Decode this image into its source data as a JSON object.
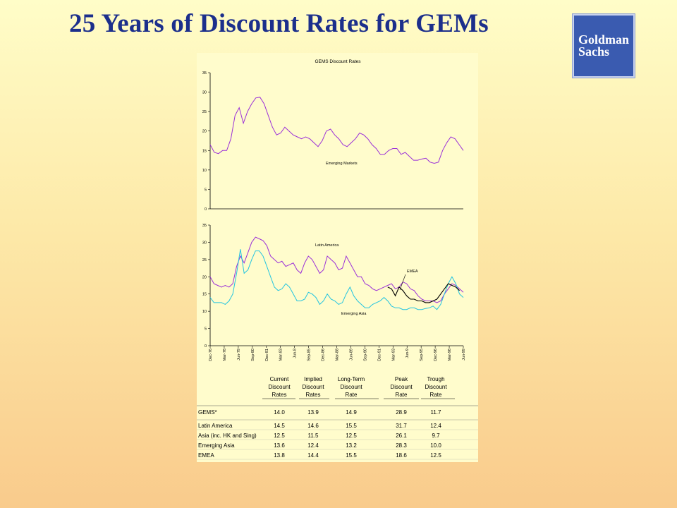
{
  "slide": {
    "title": "25 Years of Discount Rates for GEMs",
    "logo_line1": "Goldman",
    "logo_line2": "Sachs"
  },
  "colors": {
    "title": "#1c2f8c",
    "logo_bg": "#3a5bb0",
    "emerging_markets": "#9b30d8",
    "latin_america": "#9b30d8",
    "emerging_asia": "#22c4e0",
    "emea": "#000000"
  },
  "chart_data": [
    {
      "type": "line",
      "title": "GEMS Discount Rates",
      "ylim": [
        0,
        35
      ],
      "yticks": [
        0,
        5,
        10,
        15,
        20,
        25,
        30,
        35
      ],
      "series": [
        {
          "name": "Emerging Markets",
          "values": [
            16.5,
            14.5,
            14.2,
            15,
            15,
            18,
            24,
            26,
            22,
            25,
            27,
            28.5,
            28.7,
            27,
            24,
            21,
            19,
            19.5,
            21,
            20,
            19,
            18.5,
            18,
            18.5,
            18,
            17,
            16,
            17.5,
            20,
            20.5,
            19,
            18,
            16.5,
            16,
            17,
            18,
            19.5,
            19,
            18,
            16.5,
            15.5,
            14,
            14,
            15,
            15.5,
            15.5,
            14,
            14.5,
            13.5,
            12.5,
            12.5,
            12.8,
            13,
            12,
            11.7,
            12,
            15,
            17,
            18.5,
            18,
            16.5,
            15
          ]
        }
      ]
    },
    {
      "type": "line",
      "title": "",
      "ylim": [
        0,
        35
      ],
      "yticks": [
        0,
        5,
        10,
        15,
        20,
        25,
        30,
        35
      ],
      "xticks": [
        "Dec-76",
        "Mar-78",
        "Jun-79",
        "Sep-80",
        "Dec-81",
        "Mar-83",
        "Jun-8",
        "Sep-85",
        "Dec-86",
        "Mar-88",
        "Jun-89",
        "Sep-90",
        "Dec-91",
        "Mar-93",
        "Jun-9",
        "Sep-95",
        "Dec-96",
        "Mar-98",
        "Jun-99"
      ],
      "series": [
        {
          "name": "Latin America",
          "values": [
            20,
            18,
            17.5,
            17,
            17.5,
            17,
            18,
            23,
            26,
            24,
            27,
            30,
            31.5,
            31,
            30.5,
            29,
            26,
            25,
            24,
            24.5,
            23,
            23.5,
            24,
            22,
            21,
            24,
            26,
            25,
            23,
            21,
            22,
            26,
            25,
            24,
            22,
            22.5,
            26,
            24,
            22,
            20,
            20,
            18,
            17.5,
            16.5,
            16,
            16.5,
            17,
            17.5,
            18,
            16.5,
            17,
            18.5,
            18,
            16.5,
            16,
            14.5,
            13.5,
            13,
            13,
            13,
            12.5,
            13,
            15,
            16.5,
            18,
            17.5,
            16.5,
            15.5
          ]
        },
        {
          "name": "Emerging Asia",
          "values": [
            14,
            12.5,
            12.5,
            12.5,
            12,
            13,
            15,
            21,
            28,
            21,
            22,
            25,
            27.5,
            27.5,
            26,
            23,
            20,
            17,
            16,
            16.5,
            18,
            17,
            15,
            13,
            13,
            13.5,
            15.5,
            15,
            14,
            12,
            13,
            15,
            13.5,
            13,
            12,
            12.5,
            15,
            17,
            14.5,
            13,
            12,
            11,
            11,
            12,
            12.5,
            13,
            14,
            13,
            11.5,
            11,
            11,
            10.5,
            10.5,
            11,
            11,
            10.5,
            10.5,
            10.8,
            11,
            11.5,
            10.5,
            12,
            15,
            18,
            20,
            18,
            15,
            14
          ]
        },
        {
          "name": "EMEA",
          "start_index": 47,
          "values": [
            17,
            16.5,
            14.5,
            17,
            16,
            14.5,
            13.5,
            13.5,
            13,
            13,
            12.5,
            12.5,
            13,
            13.5,
            15,
            16.5,
            18,
            17.5,
            17,
            16
          ]
        }
      ]
    }
  ],
  "table": {
    "headers": [
      [
        "Current",
        "Discount",
        "Rates"
      ],
      [
        "Implied",
        "Discount",
        "Rates"
      ],
      [
        "Long-Term",
        "Discount",
        "Rate"
      ],
      [
        "Peak",
        "Discount",
        "Rate"
      ],
      [
        "Trough",
        "Discount",
        "Rate"
      ]
    ],
    "rows": [
      {
        "label": "GEMS*",
        "values": [
          "14.0",
          "13.9",
          "14.9",
          "28.9",
          "11.7"
        ]
      },
      {
        "label": "Latin America",
        "values": [
          "14.5",
          "14.6",
          "15.5",
          "31.7",
          "12.4"
        ]
      },
      {
        "label": "Asia (inc. HK and Sing)",
        "values": [
          "12.5",
          "11.5",
          "12.5",
          "26.1",
          "9.7"
        ]
      },
      {
        "label": "Emerging Asia",
        "values": [
          "13.6",
          "12.4",
          "13.2",
          "28.3",
          "10.0"
        ]
      },
      {
        "label": "EMEA",
        "values": [
          "13.8",
          "14.4",
          "15.5",
          "18.6",
          "12.5"
        ]
      }
    ]
  }
}
